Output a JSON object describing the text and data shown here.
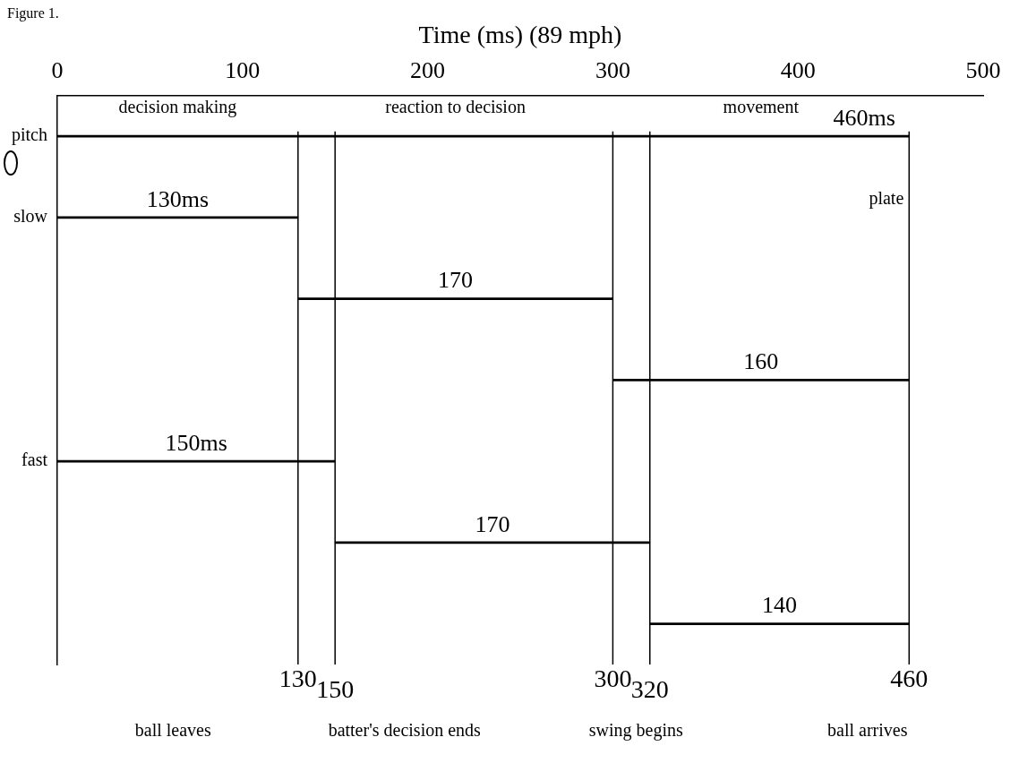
{
  "chart_data": {
    "type": "bar",
    "orientation": "horizontal",
    "xlabel": "Time (ms) (89 mph)",
    "categories": [
      "pitch",
      "slow",
      null,
      null,
      "fast",
      null,
      null
    ],
    "values": [
      460,
      130,
      170,
      160,
      150,
      170,
      140
    ],
    "base": [
      0,
      0,
      130,
      300,
      0,
      150,
      320
    ],
    "value_labels": [
      "460ms",
      "130ms",
      "170",
      "160",
      "150ms",
      "170",
      "140"
    ],
    "color": "#000000",
    "xlim": [
      0,
      500
    ],
    "xticks": [
      0,
      100,
      200,
      300,
      400,
      500
    ],
    "ref_lines": [
      {
        "axis": "x",
        "value": 130,
        "label": "130"
      },
      {
        "axis": "x",
        "value": 150,
        "label": "150"
      },
      {
        "axis": "x",
        "value": 300,
        "label": "300"
      },
      {
        "axis": "x",
        "value": 320,
        "label": "320"
      },
      {
        "axis": "x",
        "value": 460,
        "label": "460"
      }
    ],
    "annotations": [
      "Figure 1.",
      {
        "text": "decision making",
        "x": 65,
        "y": "pitch"
      },
      {
        "text": "reaction to decision",
        "x": 215,
        "y": "pitch"
      },
      {
        "text": "movement",
        "x": 380,
        "y": "pitch"
      },
      {
        "text": "plate",
        "x": 460,
        "y": "slow"
      },
      "ball leaves",
      "batter's decision ends",
      "swing begins",
      "ball arrives"
    ]
  }
}
